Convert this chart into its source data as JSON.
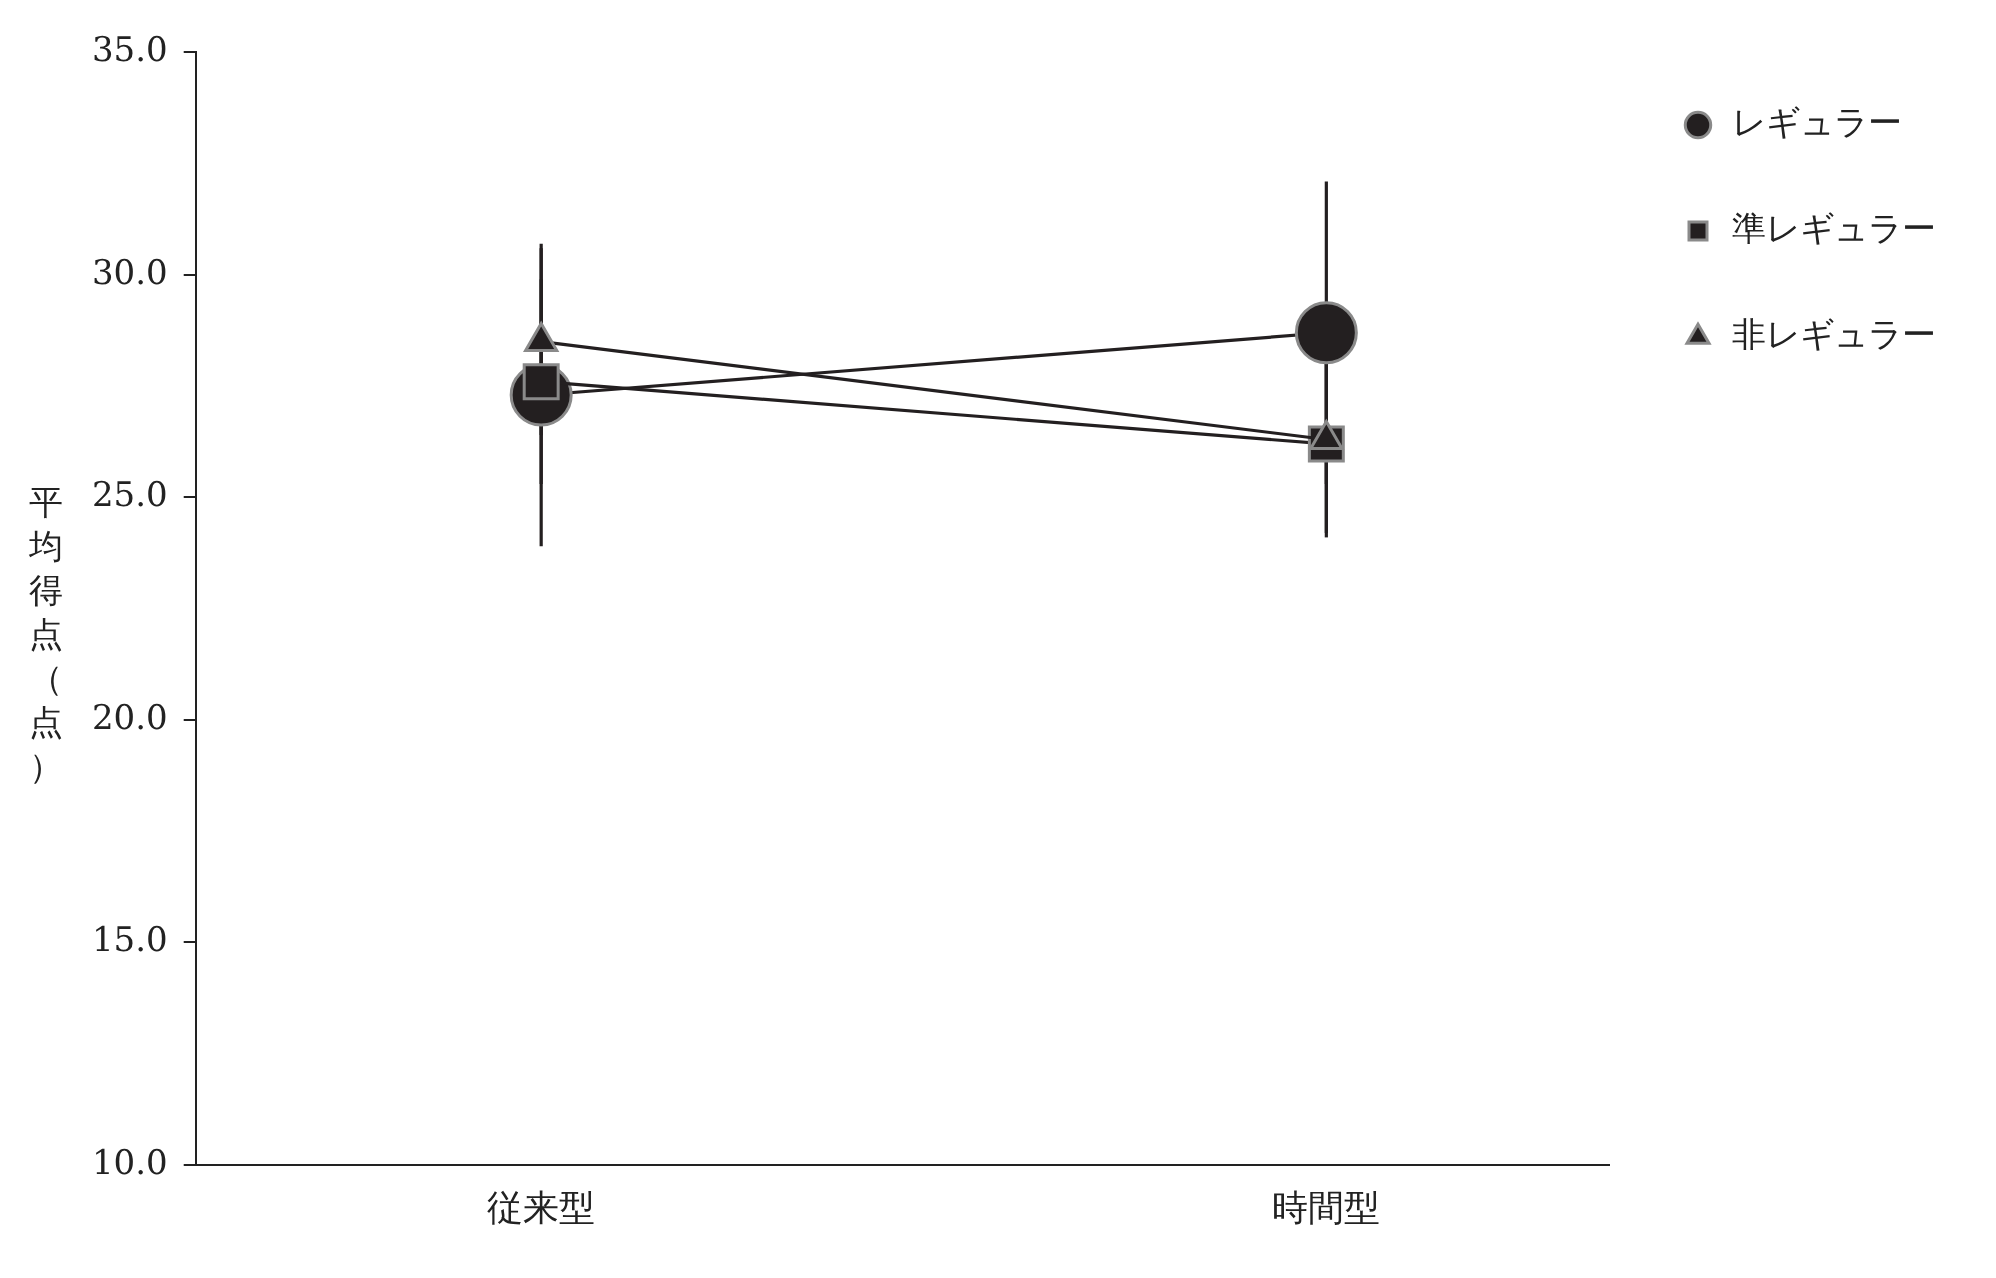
{
  "chart_data": {
    "type": "line",
    "ylabel": "平均得点（点）",
    "categories": [
      "従来型",
      "時間型"
    ],
    "series": [
      {
        "name": "レギュラー",
        "color": "#231f20",
        "values": [
          27.3,
          28.7
        ],
        "errors": [
          3.4,
          3.4
        ],
        "marker": "circle"
      },
      {
        "name": "準レギュラー",
        "color": "#231f20",
        "values": [
          27.6,
          26.2
        ],
        "errors": [
          2.3,
          2.0
        ],
        "marker": "square"
      },
      {
        "name": "非レギュラー",
        "color": "#231f20",
        "values": [
          28.5,
          26.3
        ],
        "errors": [
          2.1,
          2.2
        ],
        "marker": "triangle"
      }
    ],
    "ylim": [
      10,
      35
    ],
    "yticks": [
      {
        "value": 10,
        "label": "10.0"
      },
      {
        "value": 15,
        "label": "15.0"
      },
      {
        "value": 20,
        "label": "20.0"
      },
      {
        "value": 25,
        "label": "25.0"
      },
      {
        "value": 30,
        "label": "30.0"
      },
      {
        "value": 35,
        "label": "35.0"
      }
    ],
    "grid": false,
    "legend": "top right",
    "line_style": "solid"
  }
}
